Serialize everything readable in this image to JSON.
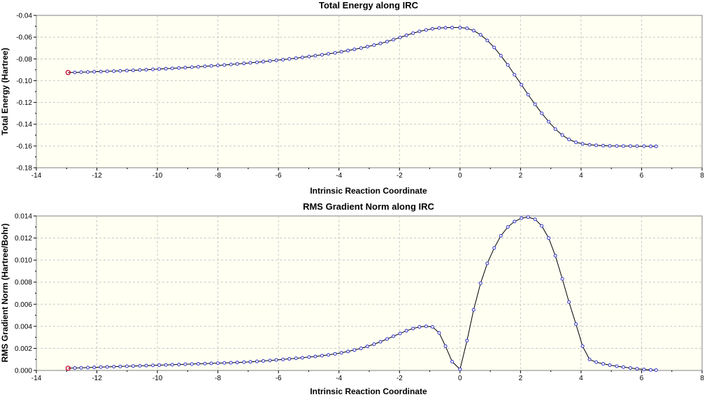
{
  "chart_data": [
    {
      "type": "line",
      "title": "Total Energy along IRC",
      "xlabel": "Intrinsic Reaction Coordinate",
      "ylabel": "Total Energy (Hartree)",
      "xlim": [
        -14,
        8
      ],
      "ylim": [
        -0.18,
        -0.04
      ],
      "x_ticks": [
        "-14",
        "-12",
        "-10",
        "-8",
        "-6",
        "-4",
        "-2",
        "0",
        "2",
        "4",
        "6",
        "8"
      ],
      "y_ticks": [
        "-0.04",
        "-0.06",
        "-0.08",
        "-0.10",
        "-0.12",
        "-0.14",
        "-0.16",
        "-0.18"
      ],
      "grid": true,
      "line_color": "#000000",
      "marker_color": "#3333cc",
      "highlight_color": "#cc0033",
      "series": [
        {
          "x": [
            -12.95,
            -12.73,
            -12.52,
            -12.3,
            -12.09,
            -11.87,
            -11.66,
            -11.44,
            -11.23,
            -11.01,
            -10.8,
            -10.58,
            -10.37,
            -10.15,
            -9.94,
            -9.72,
            -9.51,
            -9.29,
            -9.08,
            -8.86,
            -8.65,
            -8.43,
            -8.22,
            -8.0,
            -7.79,
            -7.57,
            -7.36,
            -7.14,
            -6.93,
            -6.71,
            -6.5,
            -6.28,
            -6.07,
            -5.85,
            -5.64,
            -5.42,
            -5.21,
            -4.99,
            -4.78,
            -4.56,
            -4.35,
            -4.13,
            -3.92,
            -3.7,
            -3.49,
            -3.27,
            -3.06,
            -2.84,
            -2.63,
            -2.41,
            -2.2,
            -1.98,
            -1.77,
            -1.55,
            -1.34,
            -1.12,
            -0.91,
            -0.69,
            -0.48,
            -0.26,
            0.0,
            0.23,
            0.45,
            0.68,
            0.9,
            1.13,
            1.35,
            1.58,
            1.8,
            2.03,
            2.25,
            2.48,
            2.7,
            2.93,
            3.15,
            3.38,
            3.6,
            3.83,
            4.05,
            4.28,
            4.5,
            4.73,
            4.95,
            5.18,
            5.4,
            5.63,
            5.85,
            6.08,
            6.3,
            6.48
          ],
          "y": [
            -0.0925,
            -0.0924,
            -0.0922,
            -0.092,
            -0.0918,
            -0.0916,
            -0.0914,
            -0.0912,
            -0.091,
            -0.0907,
            -0.0905,
            -0.0902,
            -0.0899,
            -0.0896,
            -0.0893,
            -0.089,
            -0.0887,
            -0.0883,
            -0.088,
            -0.0876,
            -0.0872,
            -0.0868,
            -0.0864,
            -0.086,
            -0.0856,
            -0.0851,
            -0.0846,
            -0.0841,
            -0.0836,
            -0.0831,
            -0.0825,
            -0.0819,
            -0.0813,
            -0.0807,
            -0.08,
            -0.0793,
            -0.0786,
            -0.0778,
            -0.077,
            -0.0762,
            -0.0753,
            -0.0744,
            -0.0734,
            -0.0723,
            -0.0712,
            -0.07,
            -0.0687,
            -0.0673,
            -0.0658,
            -0.0641,
            -0.0623,
            -0.0603,
            -0.0583,
            -0.0564,
            -0.0547,
            -0.0534,
            -0.0523,
            -0.0516,
            -0.0513,
            -0.0512,
            -0.0512,
            -0.0519,
            -0.054,
            -0.0578,
            -0.063,
            -0.0695,
            -0.077,
            -0.0855,
            -0.0945,
            -0.1037,
            -0.1128,
            -0.1217,
            -0.13,
            -0.1377,
            -0.1445,
            -0.15,
            -0.154,
            -0.1566,
            -0.158,
            -0.1589,
            -0.1594,
            -0.1597,
            -0.1599,
            -0.16,
            -0.1601,
            -0.1601,
            -0.1602,
            -0.1602,
            -0.1603,
            -0.1603
          ]
        }
      ]
    },
    {
      "type": "line",
      "title": "RMS Gradient Norm along IRC",
      "xlabel": "Intrinsic Reaction Coordinate",
      "ylabel": "RMS Gradient Norm (Hartree/Bohr)",
      "xlim": [
        -14,
        8
      ],
      "ylim": [
        0.0,
        0.014
      ],
      "x_ticks": [
        "-14",
        "-12",
        "-10",
        "-8",
        "-6",
        "-4",
        "-2",
        "0",
        "2",
        "4",
        "6",
        "8"
      ],
      "y_ticks": [
        "0.014",
        "0.012",
        "0.010",
        "0.008",
        "0.006",
        "0.004",
        "0.002",
        "0.000"
      ],
      "grid": true,
      "line_color": "#000000",
      "marker_color": "#3333cc",
      "highlight_color": "#cc0033",
      "series": [
        {
          "x": [
            -12.95,
            -12.73,
            -12.52,
            -12.3,
            -12.09,
            -11.87,
            -11.66,
            -11.44,
            -11.23,
            -11.01,
            -10.8,
            -10.58,
            -10.37,
            -10.15,
            -9.94,
            -9.72,
            -9.51,
            -9.29,
            -9.08,
            -8.86,
            -8.65,
            -8.43,
            -8.22,
            -8.0,
            -7.79,
            -7.57,
            -7.36,
            -7.14,
            -6.93,
            -6.71,
            -6.5,
            -6.28,
            -6.07,
            -5.85,
            -5.64,
            -5.42,
            -5.21,
            -4.99,
            -4.78,
            -4.56,
            -4.35,
            -4.13,
            -3.92,
            -3.7,
            -3.49,
            -3.27,
            -3.06,
            -2.84,
            -2.63,
            -2.41,
            -2.2,
            -1.98,
            -1.77,
            -1.55,
            -1.34,
            -1.12,
            -0.91,
            -0.69,
            -0.48,
            -0.26,
            0.0,
            0.23,
            0.45,
            0.68,
            0.9,
            1.13,
            1.35,
            1.58,
            1.8,
            2.03,
            2.25,
            2.48,
            2.7,
            2.93,
            3.15,
            3.38,
            3.6,
            3.83,
            4.05,
            4.28,
            4.5,
            4.73,
            4.95,
            5.18,
            5.4,
            5.63,
            5.85,
            6.08,
            6.3,
            6.48
          ],
          "y": [
            0.0002,
            0.00022,
            0.00024,
            0.00026,
            0.00028,
            0.0003,
            0.00032,
            0.00034,
            0.00036,
            0.00038,
            0.0004,
            0.00042,
            0.00044,
            0.00046,
            0.00048,
            0.0005,
            0.00052,
            0.00054,
            0.00056,
            0.00058,
            0.0006,
            0.00062,
            0.00064,
            0.00066,
            0.00068,
            0.0007,
            0.00072,
            0.00075,
            0.00078,
            0.00082,
            0.00086,
            0.0009,
            0.00095,
            0.001,
            0.00105,
            0.0011,
            0.00115,
            0.00121,
            0.00127,
            0.00134,
            0.00141,
            0.0015,
            0.0016,
            0.00172,
            0.00185,
            0.002,
            0.00218,
            0.00238,
            0.0026,
            0.00285,
            0.0031,
            0.00335,
            0.0036,
            0.0038,
            0.00395,
            0.004,
            0.00395,
            0.0034,
            0.0022,
            0.0008,
            0.0001,
            0.0027,
            0.0055,
            0.0079,
            0.0097,
            0.0111,
            0.0122,
            0.013,
            0.0135,
            0.0138,
            0.0139,
            0.0137,
            0.0131,
            0.012,
            0.0104,
            0.0083,
            0.0062,
            0.0042,
            0.0022,
            0.001,
            0.00075,
            0.0006,
            0.00048,
            0.00038,
            0.0003,
            0.00022,
            0.00015,
            9e-05,
            5e-05,
            3e-05
          ]
        }
      ]
    }
  ]
}
